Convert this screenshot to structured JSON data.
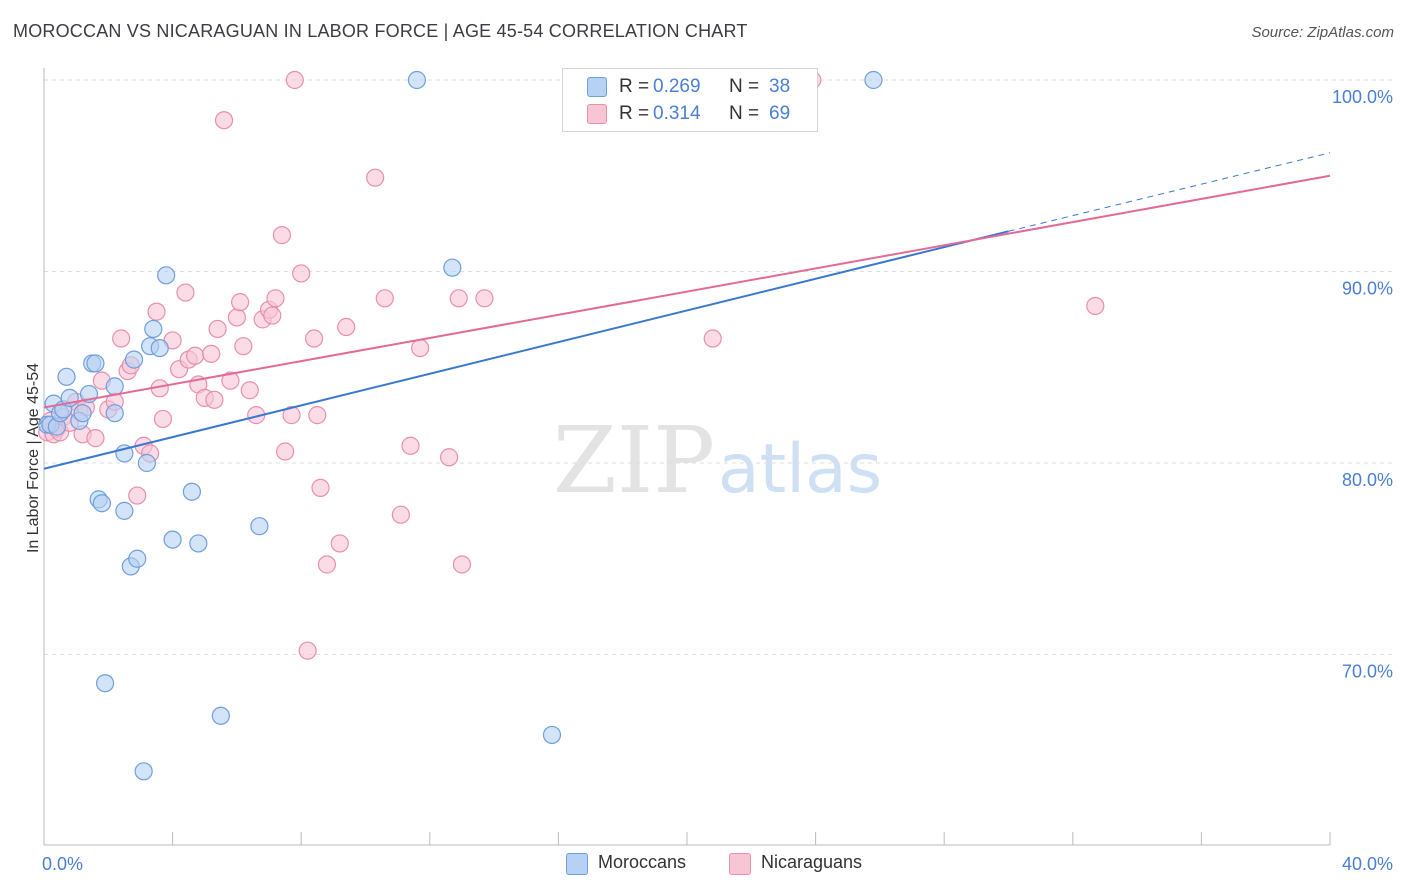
{
  "title": "MOROCCAN VS NICARAGUAN IN LABOR FORCE | AGE 45-54 CORRELATION CHART",
  "source": "Source: ZipAtlas.com",
  "watermark": {
    "zip": "ZIP",
    "atlas": "atlas"
  },
  "legend_top": {
    "rows": [
      {
        "r_label": "R =",
        "r_value": "0.269",
        "n_label": "N =",
        "n_value": "38"
      },
      {
        "r_label": "R =",
        "r_value": "0.314",
        "n_label": "N =",
        "n_value": "69"
      }
    ]
  },
  "legend_bottom": [
    {
      "label": "Moroccans"
    },
    {
      "label": "Nicaraguans"
    }
  ],
  "colors": {
    "moroccan_fill": "#b6d1f3",
    "moroccan_stroke": "#6f9fde",
    "moroccan_line": "#3a78d0",
    "nicaraguan_fill": "#f8c5d5",
    "nicaraguan_stroke": "#e98fae",
    "nicaraguan_line": "#e36a96",
    "tick_label": "#4a7fd4",
    "grid": "#dcdcdc"
  },
  "chart_data": {
    "type": "scatter",
    "title": "MOROCCAN VS NICARAGUAN IN LABOR FORCE | AGE 45-54 CORRELATION CHART",
    "xlabel": "",
    "ylabel": "In Labor Force | Age 45-54",
    "xlim": [
      0,
      40
    ],
    "ylim": [
      60.5,
      102
    ],
    "x_tick_labels": [
      {
        "value": 0,
        "label": "0.0%"
      },
      {
        "value": 40,
        "label": "40.0%"
      }
    ],
    "y_tick_labels": [
      {
        "value": 100,
        "label": "100.0%"
      },
      {
        "value": 90,
        "label": "90.0%"
      },
      {
        "value": 80,
        "label": "80.0%"
      },
      {
        "value": 70,
        "label": "70.0%"
      }
    ],
    "grid": true,
    "legend_position": "bottom",
    "series": [
      {
        "name": "Moroccans",
        "r": 0.269,
        "n": 38,
        "trend": {
          "x": [
            0,
            30
          ],
          "y": [
            79.7,
            92.1
          ],
          "dashed_to": [
            40,
            96.2
          ]
        },
        "points": [
          [
            0.1,
            82.0
          ],
          [
            0.2,
            82.0
          ],
          [
            0.3,
            83.1
          ],
          [
            0.4,
            81.9
          ],
          [
            0.5,
            82.6
          ],
          [
            0.6,
            82.8
          ],
          [
            0.7,
            84.5
          ],
          [
            0.8,
            83.4
          ],
          [
            1.1,
            82.2
          ],
          [
            1.2,
            82.6
          ],
          [
            1.4,
            83.6
          ],
          [
            1.5,
            85.2
          ],
          [
            1.6,
            85.2
          ],
          [
            1.7,
            78.1
          ],
          [
            1.8,
            77.9
          ],
          [
            1.9,
            68.5
          ],
          [
            2.2,
            82.6
          ],
          [
            2.2,
            84.0
          ],
          [
            2.5,
            80.5
          ],
          [
            2.5,
            77.5
          ],
          [
            2.7,
            74.6
          ],
          [
            2.8,
            85.4
          ],
          [
            2.9,
            75.0
          ],
          [
            3.1,
            63.9
          ],
          [
            3.2,
            80.0
          ],
          [
            3.3,
            86.1
          ],
          [
            3.4,
            87.0
          ],
          [
            3.6,
            86.0
          ],
          [
            3.8,
            89.8
          ],
          [
            4.0,
            76.0
          ],
          [
            4.6,
            78.5
          ],
          [
            4.8,
            75.8
          ],
          [
            5.5,
            66.8
          ],
          [
            6.7,
            76.7
          ],
          [
            11.6,
            100.0
          ],
          [
            12.7,
            90.2
          ],
          [
            15.8,
            65.8
          ],
          [
            25.8,
            100.0
          ]
        ]
      },
      {
        "name": "Nicaraguans",
        "r": 0.314,
        "n": 69,
        "trend": {
          "x": [
            0,
            40
          ],
          "y": [
            82.9,
            95.0
          ]
        },
        "points": [
          [
            0.1,
            81.6
          ],
          [
            0.2,
            82.2
          ],
          [
            0.3,
            81.5
          ],
          [
            0.4,
            81.8
          ],
          [
            0.5,
            81.6
          ],
          [
            0.6,
            82.4
          ],
          [
            0.8,
            82.1
          ],
          [
            1.0,
            83.2
          ],
          [
            1.1,
            82.7
          ],
          [
            1.2,
            81.5
          ],
          [
            1.3,
            82.9
          ],
          [
            1.6,
            81.3
          ],
          [
            1.8,
            84.3
          ],
          [
            2.0,
            82.8
          ],
          [
            2.2,
            83.2
          ],
          [
            2.4,
            86.5
          ],
          [
            2.6,
            84.8
          ],
          [
            2.7,
            85.1
          ],
          [
            2.9,
            78.3
          ],
          [
            3.1,
            80.9
          ],
          [
            3.3,
            80.5
          ],
          [
            3.5,
            87.9
          ],
          [
            3.6,
            83.9
          ],
          [
            3.7,
            82.3
          ],
          [
            4.0,
            86.4
          ],
          [
            4.2,
            84.9
          ],
          [
            4.4,
            88.9
          ],
          [
            4.5,
            85.4
          ],
          [
            4.7,
            85.6
          ],
          [
            4.8,
            84.1
          ],
          [
            5.0,
            83.4
          ],
          [
            5.2,
            85.7
          ],
          [
            5.3,
            83.3
          ],
          [
            5.4,
            87.0
          ],
          [
            5.6,
            97.9
          ],
          [
            5.8,
            84.3
          ],
          [
            6.0,
            87.6
          ],
          [
            6.1,
            88.4
          ],
          [
            6.2,
            86.1
          ],
          [
            6.4,
            83.8
          ],
          [
            6.6,
            82.5
          ],
          [
            6.8,
            87.5
          ],
          [
            7.0,
            88.0
          ],
          [
            7.1,
            87.7
          ],
          [
            7.2,
            88.6
          ],
          [
            7.4,
            91.9
          ],
          [
            7.5,
            80.6
          ],
          [
            7.7,
            82.5
          ],
          [
            7.8,
            100.0
          ],
          [
            8.0,
            89.9
          ],
          [
            8.2,
            70.2
          ],
          [
            8.4,
            86.5
          ],
          [
            8.5,
            82.5
          ],
          [
            8.6,
            78.7
          ],
          [
            8.8,
            74.7
          ],
          [
            9.2,
            75.8
          ],
          [
            9.4,
            87.1
          ],
          [
            10.3,
            94.9
          ],
          [
            10.6,
            88.6
          ],
          [
            11.1,
            77.3
          ],
          [
            11.4,
            80.9
          ],
          [
            11.7,
            86.0
          ],
          [
            12.6,
            80.3
          ],
          [
            12.9,
            88.6
          ],
          [
            13.0,
            74.7
          ],
          [
            13.7,
            88.6
          ],
          [
            20.8,
            86.5
          ],
          [
            23.9,
            100.0
          ],
          [
            32.7,
            88.2
          ]
        ]
      }
    ]
  }
}
